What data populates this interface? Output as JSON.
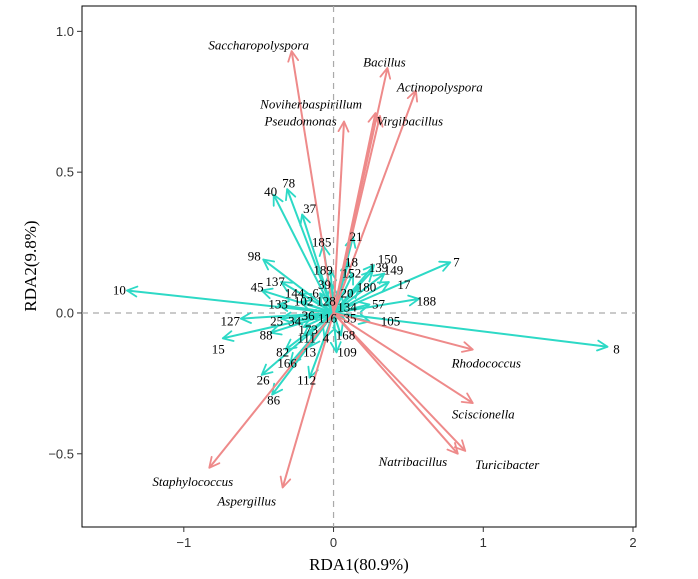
{
  "chart_data": {
    "type": "scatter",
    "subtype": "rda-biplot",
    "xlabel": "RDA1(80.9%)",
    "ylabel": "RDA2(9.8%)",
    "xlim": [
      -1.68,
      2.02
    ],
    "ylim": [
      -0.76,
      1.09
    ],
    "xticks": [
      {
        "value": -1,
        "label": "−1"
      },
      {
        "value": 0,
        "label": "0"
      },
      {
        "value": 1,
        "label": "1"
      },
      {
        "value": 2,
        "label": "2"
      }
    ],
    "yticks": [
      {
        "value": -0.5,
        "label": "−0.5"
      },
      {
        "value": 0,
        "label": "0.0"
      },
      {
        "value": 0.5,
        "label": "0.5"
      },
      {
        "value": 1,
        "label": "1.0"
      }
    ],
    "species_color": "#ee8a8a",
    "sample_color": "#2dd9c6",
    "zero_line_color": "#aaaaaa",
    "species": [
      {
        "name": "Saccharopolyspora",
        "x": -0.28,
        "y": 0.93,
        "lx": -0.5,
        "ly": 0.95
      },
      {
        "name": "Bacillus",
        "x": 0.36,
        "y": 0.87,
        "lx": 0.34,
        "ly": 0.89
      },
      {
        "name": "Actinopolyspora",
        "x": 0.55,
        "y": 0.79,
        "lx": 0.71,
        "ly": 0.8
      },
      {
        "name": "Noviherbaspirillum",
        "x": 0.28,
        "y": 0.71,
        "lx": -0.15,
        "ly": 0.74
      },
      {
        "name": "Pseudomonas",
        "x": 0.07,
        "y": 0.68,
        "lx": -0.22,
        "ly": 0.68
      },
      {
        "name": "Virgibacillus",
        "x": 0.31,
        "y": 0.7,
        "lx": 0.51,
        "ly": 0.68
      },
      {
        "name": "Rhodococcus",
        "x": 0.93,
        "y": -0.13,
        "lx": 1.02,
        "ly": -0.18
      },
      {
        "name": "Sciscionella",
        "x": 0.93,
        "y": -0.32,
        "lx": 1.0,
        "ly": -0.36
      },
      {
        "name": "Natribacillus",
        "x": 0.83,
        "y": -0.5,
        "lx": 0.53,
        "ly": -0.53
      },
      {
        "name": "Turicibacter",
        "x": 0.88,
        "y": -0.49,
        "lx": 1.16,
        "ly": -0.54
      },
      {
        "name": "Staphylococcus",
        "x": -0.83,
        "y": -0.55,
        "lx": -0.94,
        "ly": -0.6
      },
      {
        "name": "Aspergillus",
        "x": -0.34,
        "y": -0.62,
        "lx": -0.58,
        "ly": -0.67
      }
    ],
    "samples": [
      {
        "name": "10",
        "x": -1.38,
        "y": 0.08,
        "lx": -1.43,
        "ly": 0.08
      },
      {
        "name": "8",
        "x": 1.83,
        "y": -0.12,
        "lx": 1.89,
        "ly": -0.13
      },
      {
        "name": "7",
        "x": 0.78,
        "y": 0.18,
        "lx": 0.82,
        "ly": 0.18
      },
      {
        "name": "188",
        "x": 0.57,
        "y": 0.05,
        "lx": 0.62,
        "ly": 0.04
      },
      {
        "name": "17",
        "x": 0.37,
        "y": 0.11,
        "lx": 0.47,
        "ly": 0.1
      },
      {
        "name": "149",
        "x": 0.34,
        "y": 0.14,
        "lx": 0.4,
        "ly": 0.15
      },
      {
        "name": "150",
        "x": 0.27,
        "y": 0.17,
        "lx": 0.36,
        "ly": 0.19
      },
      {
        "name": "139",
        "x": 0.26,
        "y": 0.15,
        "lx": 0.3,
        "ly": 0.16
      },
      {
        "name": "152",
        "x": 0.13,
        "y": 0.14,
        "lx": 0.12,
        "ly": 0.14
      },
      {
        "name": "18",
        "x": 0.1,
        "y": 0.18,
        "lx": 0.12,
        "ly": 0.18
      },
      {
        "name": "21",
        "x": 0.13,
        "y": 0.27,
        "lx": 0.15,
        "ly": 0.27
      },
      {
        "name": "180",
        "x": 0.17,
        "y": 0.09,
        "lx": 0.22,
        "ly": 0.09
      },
      {
        "name": "20",
        "x": 0.05,
        "y": 0.08,
        "lx": 0.09,
        "ly": 0.07
      },
      {
        "name": "57",
        "x": 0.24,
        "y": 0.03,
        "lx": 0.3,
        "ly": 0.03
      },
      {
        "name": "134",
        "x": 0.06,
        "y": 0.02,
        "lx": 0.09,
        "ly": 0.02
      },
      {
        "name": "105",
        "x": 0.24,
        "y": -0.03,
        "lx": 0.38,
        "ly": -0.03
      },
      {
        "name": "35",
        "x": 0.07,
        "y": -0.02,
        "lx": 0.11,
        "ly": -0.02
      },
      {
        "name": "168",
        "x": 0.05,
        "y": -0.08,
        "lx": 0.08,
        "ly": -0.08
      },
      {
        "name": "109",
        "x": 0.02,
        "y": -0.14,
        "lx": 0.09,
        "ly": -0.14
      },
      {
        "name": "185",
        "x": -0.07,
        "y": 0.24,
        "lx": -0.08,
        "ly": 0.25
      },
      {
        "name": "37",
        "x": -0.21,
        "y": 0.35,
        "lx": -0.16,
        "ly": 0.37
      },
      {
        "name": "78",
        "x": -0.31,
        "y": 0.44,
        "lx": -0.3,
        "ly": 0.46
      },
      {
        "name": "40",
        "x": -0.4,
        "y": 0.42,
        "lx": -0.42,
        "ly": 0.43
      },
      {
        "name": "98",
        "x": -0.47,
        "y": 0.19,
        "lx": -0.53,
        "ly": 0.2
      },
      {
        "name": "189",
        "x": -0.02,
        "y": 0.15,
        "lx": -0.07,
        "ly": 0.15
      },
      {
        "name": "39",
        "x": -0.01,
        "y": 0.1,
        "lx": -0.06,
        "ly": 0.1
      },
      {
        "name": "137",
        "x": -0.35,
        "y": 0.11,
        "lx": -0.39,
        "ly": 0.11
      },
      {
        "name": "144",
        "x": -0.22,
        "y": 0.07,
        "lx": -0.26,
        "ly": 0.07
      },
      {
        "name": "6",
        "x": -0.09,
        "y": 0.07,
        "lx": -0.12,
        "ly": 0.07
      },
      {
        "name": "45",
        "x": -0.48,
        "y": 0.08,
        "lx": -0.51,
        "ly": 0.09
      },
      {
        "name": "133",
        "x": -0.37,
        "y": 0.03,
        "lx": -0.37,
        "ly": 0.03
      },
      {
        "name": "102",
        "x": -0.22,
        "y": 0.04,
        "lx": -0.2,
        "ly": 0.04
      },
      {
        "name": "128",
        "x": -0.05,
        "y": 0.04,
        "lx": -0.05,
        "ly": 0.04
      },
      {
        "name": "127",
        "x": -0.62,
        "y": -0.02,
        "lx": -0.69,
        "ly": -0.03
      },
      {
        "name": "25",
        "x": -0.35,
        "y": -0.02,
        "lx": -0.38,
        "ly": -0.03
      },
      {
        "name": "34",
        "x": -0.28,
        "y": -0.03,
        "lx": -0.26,
        "ly": -0.03
      },
      {
        "name": "36",
        "x": -0.18,
        "y": -0.01,
        "lx": -0.17,
        "ly": -0.01
      },
      {
        "name": "116",
        "x": -0.04,
        "y": -0.02,
        "lx": -0.04,
        "ly": -0.02
      },
      {
        "name": "88",
        "x": -0.42,
        "y": -0.07,
        "lx": -0.45,
        "ly": -0.08
      },
      {
        "name": "173",
        "x": -0.2,
        "y": -0.05,
        "lx": -0.17,
        "ly": -0.06
      },
      {
        "name": "15",
        "x": -0.74,
        "y": -0.09,
        "lx": -0.77,
        "ly": -0.13
      },
      {
        "name": "111",
        "x": -0.2,
        "y": -0.08,
        "lx": -0.18,
        "ly": -0.09
      },
      {
        "name": "4",
        "x": -0.06,
        "y": -0.09,
        "lx": -0.05,
        "ly": -0.09
      },
      {
        "name": "82",
        "x": -0.32,
        "y": -0.13,
        "lx": -0.34,
        "ly": -0.14
      },
      {
        "name": "13",
        "x": -0.16,
        "y": -0.12,
        "lx": -0.16,
        "ly": -0.14
      },
      {
        "name": "166",
        "x": -0.29,
        "y": -0.18,
        "lx": -0.31,
        "ly": -0.18
      },
      {
        "name": "26",
        "x": -0.48,
        "y": -0.22,
        "lx": -0.47,
        "ly": -0.24
      },
      {
        "name": "112",
        "x": -0.16,
        "y": -0.23,
        "lx": -0.18,
        "ly": -0.24
      },
      {
        "name": "86",
        "x": -0.41,
        "y": -0.29,
        "lx": -0.4,
        "ly": -0.31
      }
    ]
  }
}
